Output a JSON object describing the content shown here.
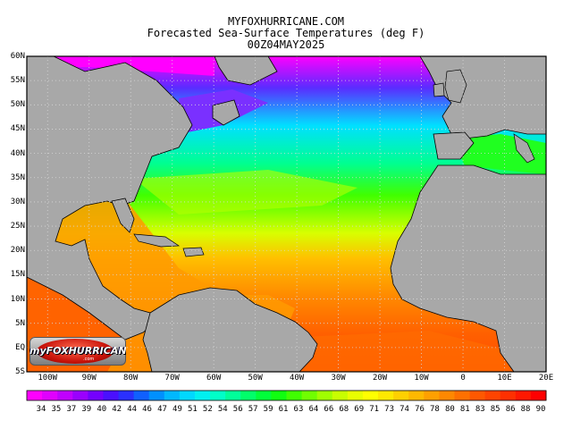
{
  "header": {
    "site": "MYFOXHURRICANE.COM",
    "title": "Forecasted Sea-Surface Temperatures (deg F)",
    "valid_time": "00Z04MAY2025"
  },
  "map": {
    "lat_labels": [
      "60N",
      "55N",
      "50N",
      "45N",
      "40N",
      "35N",
      "30N",
      "25N",
      "20N",
      "15N",
      "10N",
      "5N",
      "EQ",
      "5S"
    ],
    "lon_labels": [
      "100W",
      "90W",
      "80W",
      "70W",
      "60W",
      "50W",
      "40W",
      "30W",
      "20W",
      "10W",
      "0",
      "10E",
      "20E"
    ],
    "lon_range": [
      -105,
      20
    ],
    "lat_range": [
      -5,
      60
    ],
    "land_color": "#a8a8a8",
    "grid": "dotted"
  },
  "colorbar": {
    "unit": "deg F",
    "values": [
      "34",
      "35",
      "37",
      "39",
      "40",
      "42",
      "44",
      "46",
      "47",
      "49",
      "51",
      "52",
      "54",
      "56",
      "57",
      "59",
      "61",
      "63",
      "64",
      "66",
      "68",
      "69",
      "71",
      "73",
      "74",
      "76",
      "78",
      "80",
      "81",
      "83",
      "85",
      "86",
      "88",
      "90"
    ],
    "colors": [
      "#ff00ff",
      "#e000ff",
      "#c000ff",
      "#9a00ff",
      "#7400ff",
      "#4a10ff",
      "#2a30ff",
      "#1060ff",
      "#0090ff",
      "#00b8ff",
      "#00d8ff",
      "#00f0f0",
      "#00ffc8",
      "#00ff9a",
      "#00ff6a",
      "#00ff3a",
      "#10ff10",
      "#40ff00",
      "#70ff00",
      "#a0ff00",
      "#c8ff00",
      "#e8ff00",
      "#ffff00",
      "#ffe800",
      "#ffd000",
      "#ffb800",
      "#ffa000",
      "#ff8800",
      "#ff7000",
      "#ff5800",
      "#ff4400",
      "#ff3000",
      "#ff1800",
      "#ff0000"
    ]
  },
  "logo": {
    "text": "myFOXHURRICANE",
    "sub": ".com"
  }
}
